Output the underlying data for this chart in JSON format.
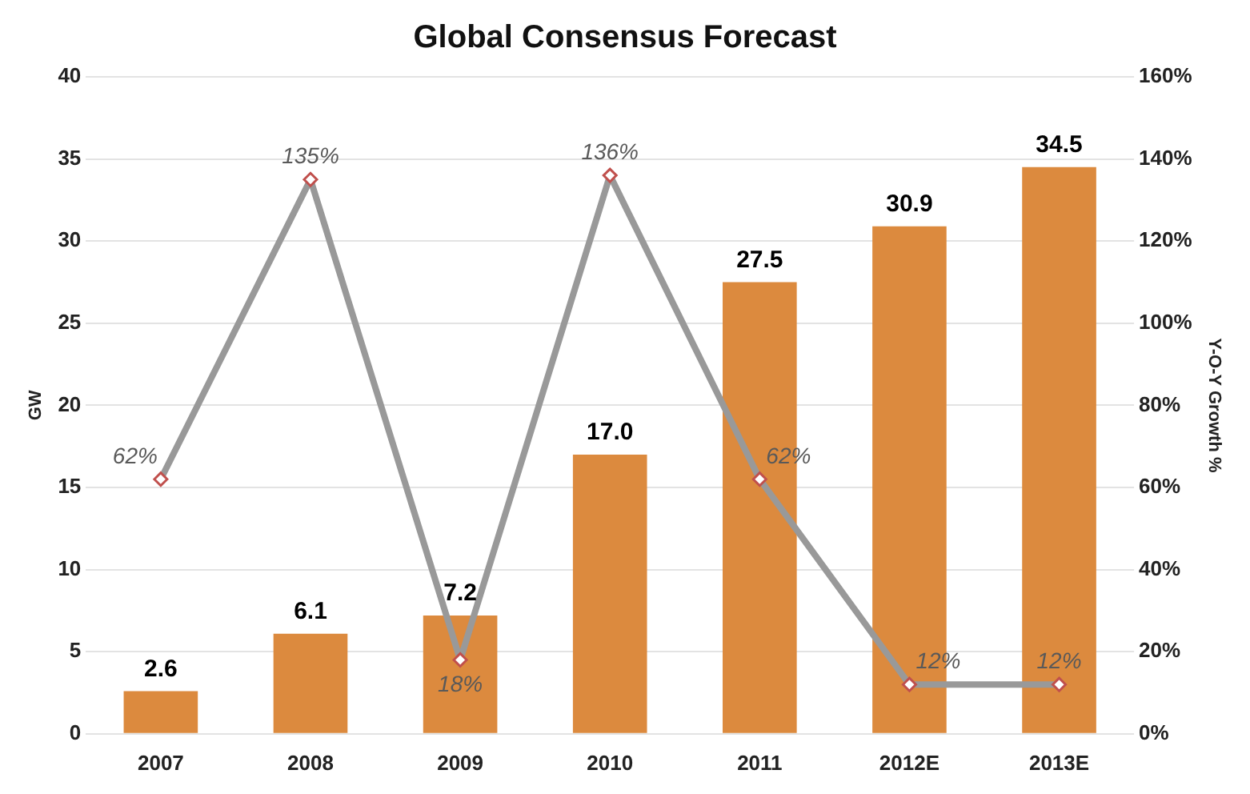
{
  "chart_data": {
    "type": "bar",
    "title": "Global Consensus Forecast",
    "ylabel": "GW",
    "y2label": "Y-O-Y Growth %",
    "categories": [
      "2007",
      "2008",
      "2009",
      "2010",
      "2011",
      "2012E",
      "2013E"
    ],
    "series": [
      {
        "color": "#dc8a3e",
        "values": [
          2.6,
          6.1,
          7.2,
          17.0,
          27.5,
          30.9,
          34.5
        ],
        "value_labels": [
          "2.6",
          "6.1",
          "7.2",
          "17.0",
          "27.5",
          "30.9",
          "34.5"
        ]
      },
      {
        "type": "line",
        "axis": "y2",
        "color": "#999999",
        "values": [
          62,
          135,
          18,
          136,
          62,
          12,
          12
        ],
        "value_labels": [
          "62%",
          "135%",
          "18%",
          "136%",
          "62%",
          "12%",
          "12%"
        ],
        "marker": "diamond"
      }
    ],
    "ylim": [
      0,
      40
    ],
    "yticks": [
      0,
      5,
      10,
      15,
      20,
      25,
      30,
      35,
      40
    ],
    "y2lim": [
      0,
      160
    ],
    "y2ticks": [
      {
        "value": 0,
        "label": "0%"
      },
      {
        "value": 20,
        "label": "20%"
      },
      {
        "value": 40,
        "label": "40%"
      },
      {
        "value": 60,
        "label": "60%"
      },
      {
        "value": 80,
        "label": "80%"
      },
      {
        "value": 100,
        "label": "100%"
      },
      {
        "value": 120,
        "label": "120%"
      },
      {
        "value": 140,
        "label": "140%"
      },
      {
        "value": 160,
        "label": "160%"
      }
    ],
    "grid": "y",
    "legend": false
  }
}
